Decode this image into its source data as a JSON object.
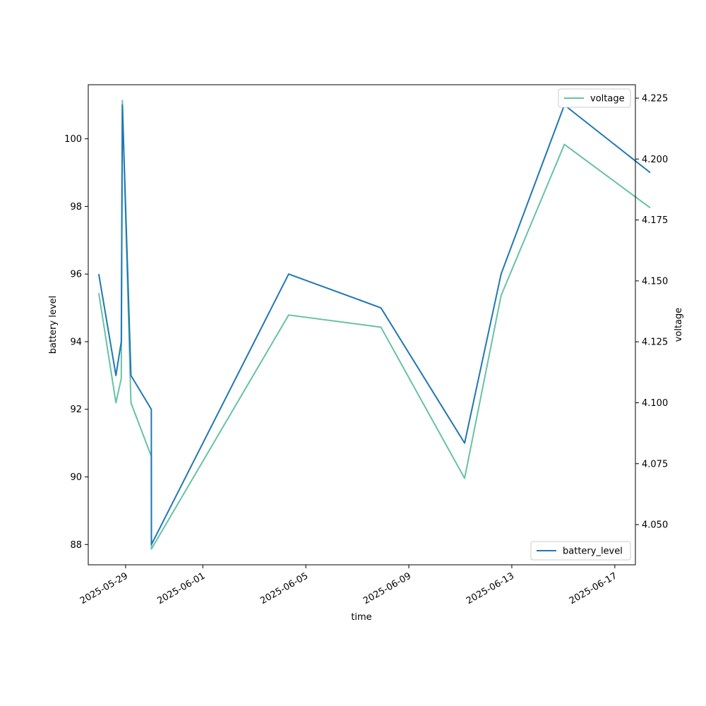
{
  "chart_data": {
    "type": "line",
    "xlabel": "time",
    "ylabel_left": "battery level",
    "ylabel_right": "voltage",
    "x_ticks": [
      "2025-05-29",
      "2025-06-01",
      "2025-06-05",
      "2025-06-09",
      "2025-06-13",
      "2025-06-17"
    ],
    "y_left_ticks": [
      "88",
      "90",
      "92",
      "94",
      "96",
      "98",
      "100"
    ],
    "y_right_ticks": [
      "4.050",
      "4.075",
      "4.100",
      "4.125",
      "4.150",
      "4.175",
      "4.200",
      "4.225"
    ],
    "ylim_left": [
      87.4,
      101.6
    ],
    "ylim_right": [
      4.0335,
      4.2305
    ],
    "grid": false,
    "series": [
      {
        "name": "battery_level",
        "axis": "left",
        "color": "#1f77b4",
        "legend_position": "lower-right",
        "points": [
          {
            "t": "2025-05-27 23:00",
            "v": 96
          },
          {
            "t": "2025-05-28 15:00",
            "v": 93
          },
          {
            "t": "2025-05-28 20:00",
            "v": 94
          },
          {
            "t": "2025-05-28 21:00",
            "v": 101
          },
          {
            "t": "2025-05-29 05:00",
            "v": 93
          },
          {
            "t": "2025-05-30 00:00",
            "v": 92
          },
          {
            "t": "2025-05-30 00:05",
            "v": 88
          },
          {
            "t": "2025-06-04 08:00",
            "v": 96
          },
          {
            "t": "2025-06-07 22:00",
            "v": 95
          },
          {
            "t": "2025-06-11 04:00",
            "v": 91
          },
          {
            "t": "2025-06-12 14:00",
            "v": 96
          },
          {
            "t": "2025-06-15 01:00",
            "v": 101
          },
          {
            "t": "2025-06-18 09:00",
            "v": 99
          }
        ]
      },
      {
        "name": "voltage",
        "axis": "right",
        "color": "#66c2a5",
        "legend_position": "upper-right",
        "points": [
          {
            "t": "2025-05-27 23:00",
            "v": 4.145
          },
          {
            "t": "2025-05-28 15:00",
            "v": 4.1
          },
          {
            "t": "2025-05-28 20:00",
            "v": 4.11
          },
          {
            "t": "2025-05-28 21:00",
            "v": 4.224
          },
          {
            "t": "2025-05-29 05:00",
            "v": 4.1
          },
          {
            "t": "2025-05-30 00:00",
            "v": 4.078
          },
          {
            "t": "2025-05-30 00:05",
            "v": 4.04
          },
          {
            "t": "2025-06-04 08:00",
            "v": 4.136
          },
          {
            "t": "2025-06-07 22:00",
            "v": 4.131
          },
          {
            "t": "2025-06-11 04:00",
            "v": 4.069
          },
          {
            "t": "2025-06-12 14:00",
            "v": 4.144
          },
          {
            "t": "2025-06-15 01:00",
            "v": 4.206
          },
          {
            "t": "2025-06-18 09:00",
            "v": 4.18
          }
        ]
      }
    ]
  }
}
